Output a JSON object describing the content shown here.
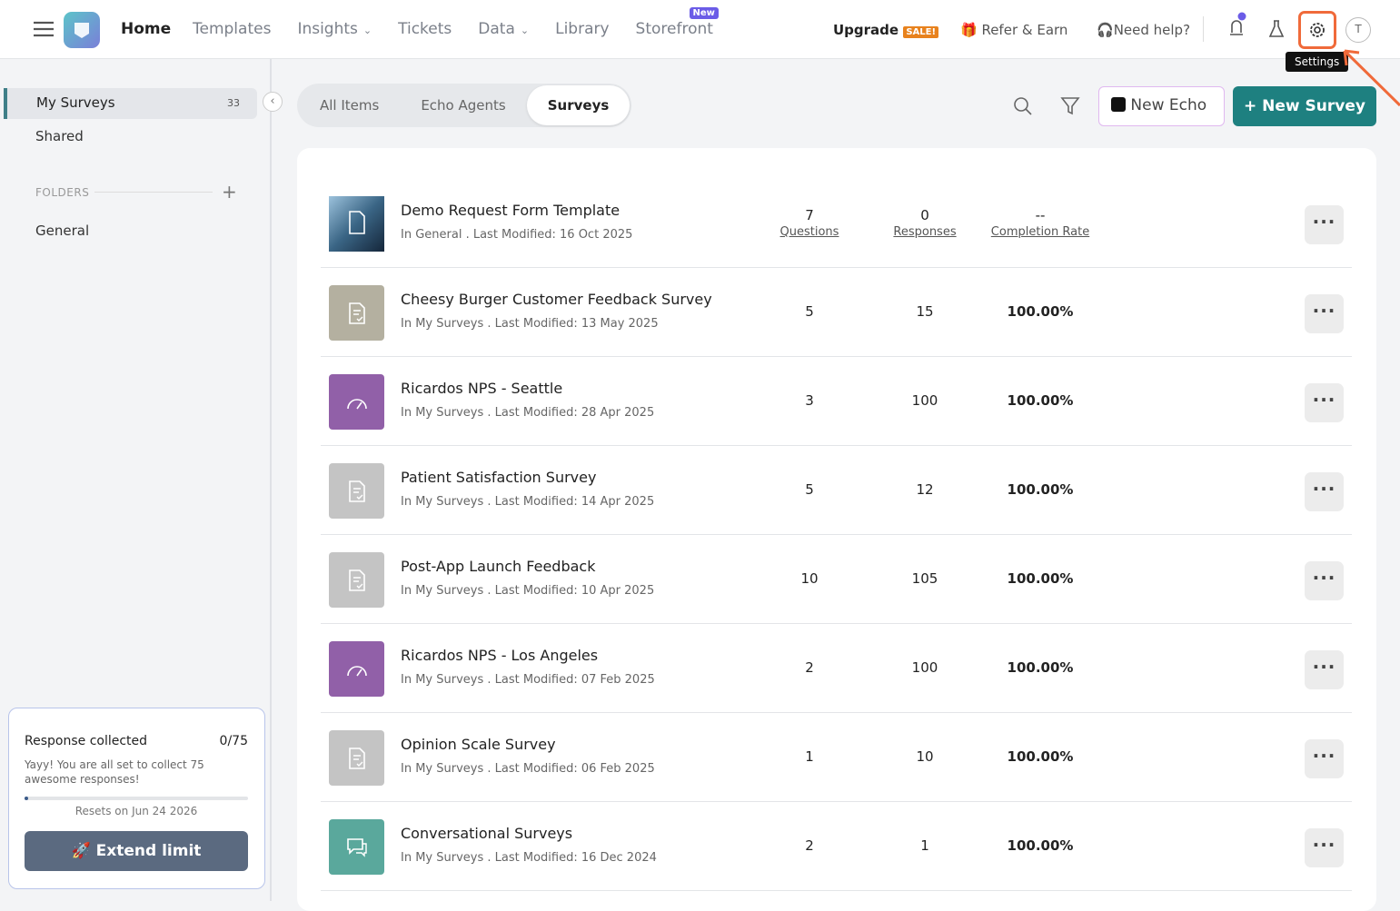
{
  "nav": {
    "home": "Home",
    "items": [
      {
        "label": "Templates"
      },
      {
        "label": "Insights",
        "dropdown": true
      },
      {
        "label": "Tickets"
      },
      {
        "label": "Data",
        "dropdown": true
      },
      {
        "label": "Library"
      },
      {
        "label": "Storefront",
        "badge": "New"
      }
    ],
    "upgrade": "Upgrade",
    "sale": "SALE!",
    "refer": "Refer & Earn",
    "help": "Need help?",
    "avatar": "T",
    "tooltip": "Settings"
  },
  "sidebar": {
    "my_surveys": "My Surveys",
    "count": 33,
    "shared": "Shared",
    "folders": "FOLDERS",
    "folder_items": [
      "General"
    ],
    "quota": {
      "title": "Response collected",
      "count": "0/75",
      "message": "Yayy! You are all set to collect 75 awesome responses!",
      "resets": "Resets on Jun 24 2026",
      "button": "Extend limit"
    }
  },
  "tabs": [
    "All Items",
    "Echo Agents",
    "Surveys"
  ],
  "active_tab": 2,
  "actions": {
    "new_echo": "New Echo",
    "new_survey": "New Survey"
  },
  "columns": {
    "questions": "Questions",
    "responses": "Responses",
    "completion_rate": "Completion Rate"
  },
  "surveys": [
    {
      "title": "Demo Request Form Template",
      "location": "In General . Last Modified: 16 Oct 2025",
      "questions": 7,
      "responses": 0,
      "completion_rate": "--",
      "icon": "photo",
      "color": "#23415e"
    },
    {
      "title": "Cheesy Burger Customer Feedback Survey",
      "location": "In My Surveys . Last Modified: 13 May 2025",
      "questions": 5,
      "responses": 15,
      "completion_rate": "100.00%",
      "icon": "doc",
      "color": "#b4b0a0"
    },
    {
      "title": "Ricardos NPS - Seattle",
      "location": "In My Surveys . Last Modified: 28 Apr 2025",
      "questions": 3,
      "responses": 100,
      "completion_rate": "100.00%",
      "icon": "gauge",
      "color": "#9160a8"
    },
    {
      "title": "Patient Satisfaction Survey",
      "location": "In My Surveys . Last Modified: 14 Apr 2025",
      "questions": 5,
      "responses": 12,
      "completion_rate": "100.00%",
      "icon": "doc",
      "color": "#c4c4c4"
    },
    {
      "title": "Post-App Launch Feedback",
      "location": "In My Surveys . Last Modified: 10 Apr 2025",
      "questions": 10,
      "responses": 105,
      "completion_rate": "100.00%",
      "icon": "doc",
      "color": "#c4c4c4"
    },
    {
      "title": "Ricardos NPS - Los Angeles",
      "location": "In My Surveys . Last Modified: 07 Feb 2025",
      "questions": 2,
      "responses": 100,
      "completion_rate": "100.00%",
      "icon": "gauge",
      "color": "#9160a8"
    },
    {
      "title": "Opinion Scale Survey",
      "location": "In My Surveys . Last Modified: 06 Feb 2025",
      "questions": 1,
      "responses": 10,
      "completion_rate": "100.00%",
      "icon": "doc",
      "color": "#c4c4c4"
    },
    {
      "title": "Conversational Surveys",
      "location": "In My Surveys . Last Modified: 16 Dec 2024",
      "questions": 2,
      "responses": 1,
      "completion_rate": "100.00%",
      "icon": "chat",
      "color": "#5aa89c"
    }
  ]
}
